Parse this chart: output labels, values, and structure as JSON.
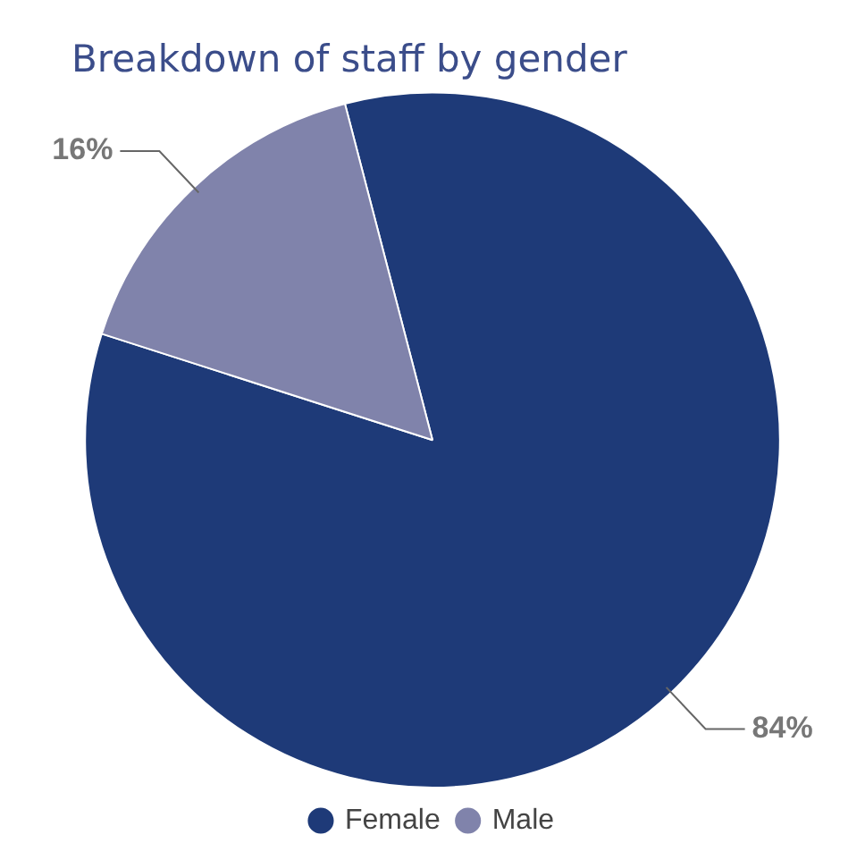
{
  "chart_data": {
    "type": "pie",
    "title": "Breakdown of staff by gender",
    "categories": [
      "Female",
      "Male"
    ],
    "values": [
      84,
      16
    ],
    "colors": [
      "#1e3a78",
      "#8083ab"
    ],
    "value_labels": [
      "84%",
      "16%"
    ],
    "legend": "bottom"
  }
}
